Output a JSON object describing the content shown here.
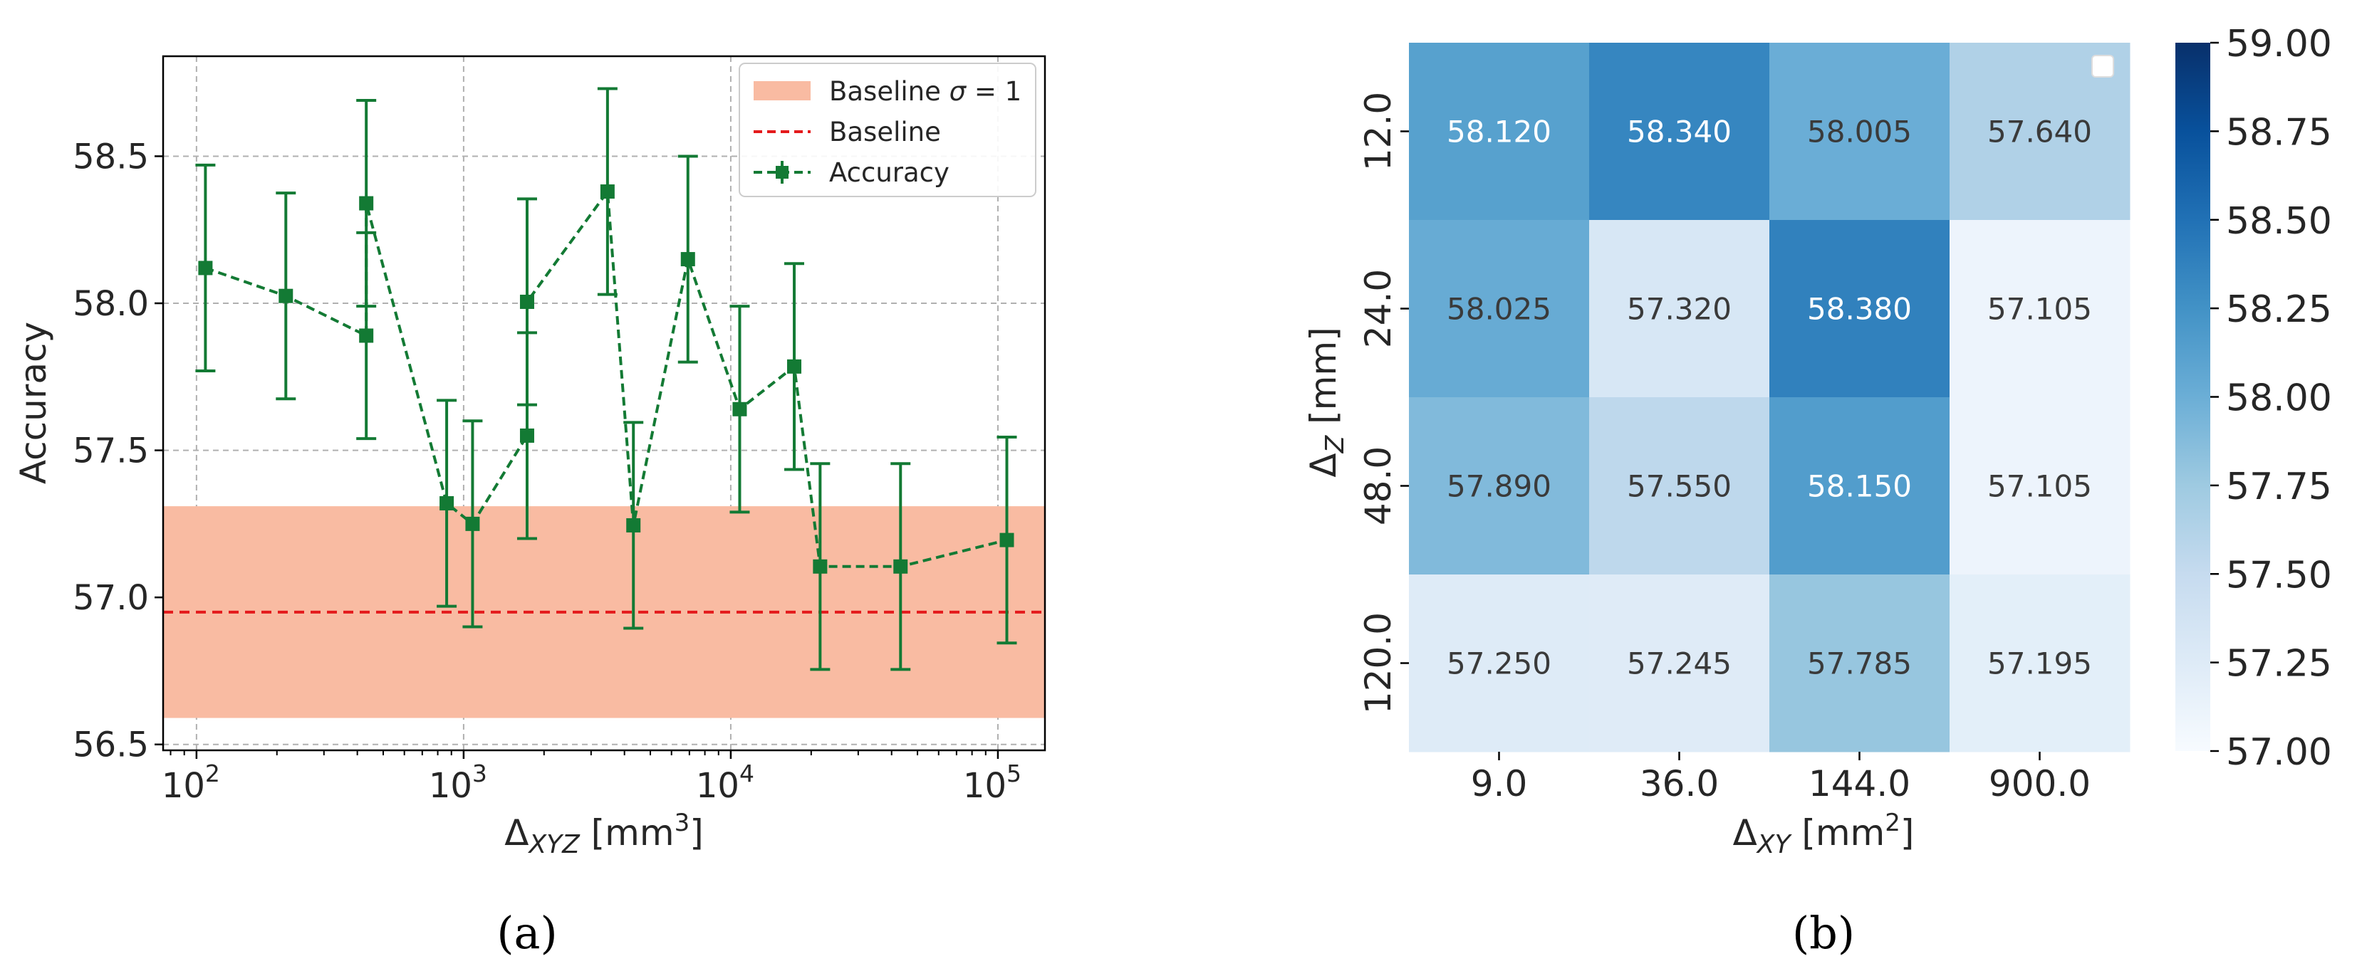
{
  "chart_data": [
    {
      "type": "line",
      "panel_label": "(a)",
      "title": "",
      "xlabel_main": "Δ",
      "xlabel_sub": "XYZ",
      "xlabel_unit": " [mm",
      "xlabel_sup": "3",
      "xlabel_close": "]",
      "ylabel": "Accuracy",
      "xscale": "log",
      "xlim": [
        75,
        150000
      ],
      "ylim": [
        56.48,
        58.84
      ],
      "grid": true,
      "xticks": [
        {
          "value": 100,
          "base": "10",
          "exp": "2"
        },
        {
          "value": 1000,
          "base": "10",
          "exp": "3"
        },
        {
          "value": 10000,
          "base": "10",
          "exp": "4"
        },
        {
          "value": 100000,
          "base": "10",
          "exp": "5"
        }
      ],
      "yticks": [
        {
          "value": 56.5,
          "label": "56.5"
        },
        {
          "value": 57.0,
          "label": "57.0"
        },
        {
          "value": 57.5,
          "label": "57.5"
        },
        {
          "value": 58.0,
          "label": "58.0"
        },
        {
          "value": 58.5,
          "label": "58.5"
        }
      ],
      "baseline": {
        "value": 56.95,
        "sigma": 0.36,
        "color": "#e41a1c",
        "band_color": "#f9bba2"
      },
      "series": [
        {
          "name": "Accuracy",
          "color": "#137a34",
          "points": [
            {
              "x": 108,
              "y": 58.12,
              "err": 0.35
            },
            {
              "x": 216,
              "y": 58.025,
              "err": 0.35
            },
            {
              "x": 432,
              "y": 57.89,
              "err": 0.35
            },
            {
              "x": 432,
              "y": 58.34,
              "err": 0.35
            },
            {
              "x": 864,
              "y": 57.32,
              "err": 0.35
            },
            {
              "x": 1080,
              "y": 57.25,
              "err": 0.35
            },
            {
              "x": 1728,
              "y": 57.55,
              "err": 0.35
            },
            {
              "x": 1728,
              "y": 58.005,
              "err": 0.35
            },
            {
              "x": 3456,
              "y": 58.38,
              "err": 0.35
            },
            {
              "x": 4320,
              "y": 57.245,
              "err": 0.35
            },
            {
              "x": 6912,
              "y": 58.15,
              "err": 0.35
            },
            {
              "x": 10800,
              "y": 57.64,
              "err": 0.35
            },
            {
              "x": 17280,
              "y": 57.785,
              "err": 0.35
            },
            {
              "x": 21600,
              "y": 57.105,
              "err": 0.35
            },
            {
              "x": 43200,
              "y": 57.105,
              "err": 0.35
            },
            {
              "x": 108000,
              "y": 57.195,
              "err": 0.35
            }
          ]
        }
      ],
      "legend": {
        "position": "top-right",
        "band_label_prefix": "Baseline ",
        "band_label_sigma": "σ",
        "band_label_suffix": " = 1",
        "baseline_label": "Baseline",
        "series_label": "Accuracy"
      }
    },
    {
      "type": "heatmap",
      "panel_label": "(b)",
      "title": "",
      "xlabel_main": "Δ",
      "xlabel_sub": "XY",
      "xlabel_unit": " [mm",
      "xlabel_sup": "2",
      "xlabel_close": "]",
      "ylabel_main": "Δ",
      "ylabel_sub": "Z",
      "ylabel_unit": " [mm]",
      "x_categories": [
        "9.0",
        "36.0",
        "144.0",
        "900.0"
      ],
      "y_categories": [
        "12.0",
        "24.0",
        "48.0",
        "120.0"
      ],
      "values": [
        [
          58.12,
          58.34,
          58.005,
          57.64
        ],
        [
          58.025,
          57.32,
          58.38,
          57.105
        ],
        [
          57.89,
          57.55,
          58.15,
          57.105
        ],
        [
          57.25,
          57.245,
          57.785,
          57.195
        ]
      ],
      "annotations": [
        [
          "58.120",
          "58.340",
          "58.005",
          "57.640"
        ],
        [
          "58.025",
          "57.320",
          "58.380",
          "57.105"
        ],
        [
          "57.890",
          "57.550",
          "58.150",
          "57.105"
        ],
        [
          "57.250",
          "57.245",
          "57.785",
          "57.195"
        ]
      ],
      "vmin": 57.0,
      "vmax": 59.0,
      "colormap": "Blues",
      "colorbar_ticks": [
        "57.00",
        "57.25",
        "57.50",
        "57.75",
        "58.00",
        "58.25",
        "58.50",
        "58.75",
        "59.00"
      ],
      "colorbar_tick_values": [
        57.0,
        57.25,
        57.5,
        57.75,
        58.0,
        58.25,
        58.5,
        58.75,
        59.0
      ]
    }
  ]
}
